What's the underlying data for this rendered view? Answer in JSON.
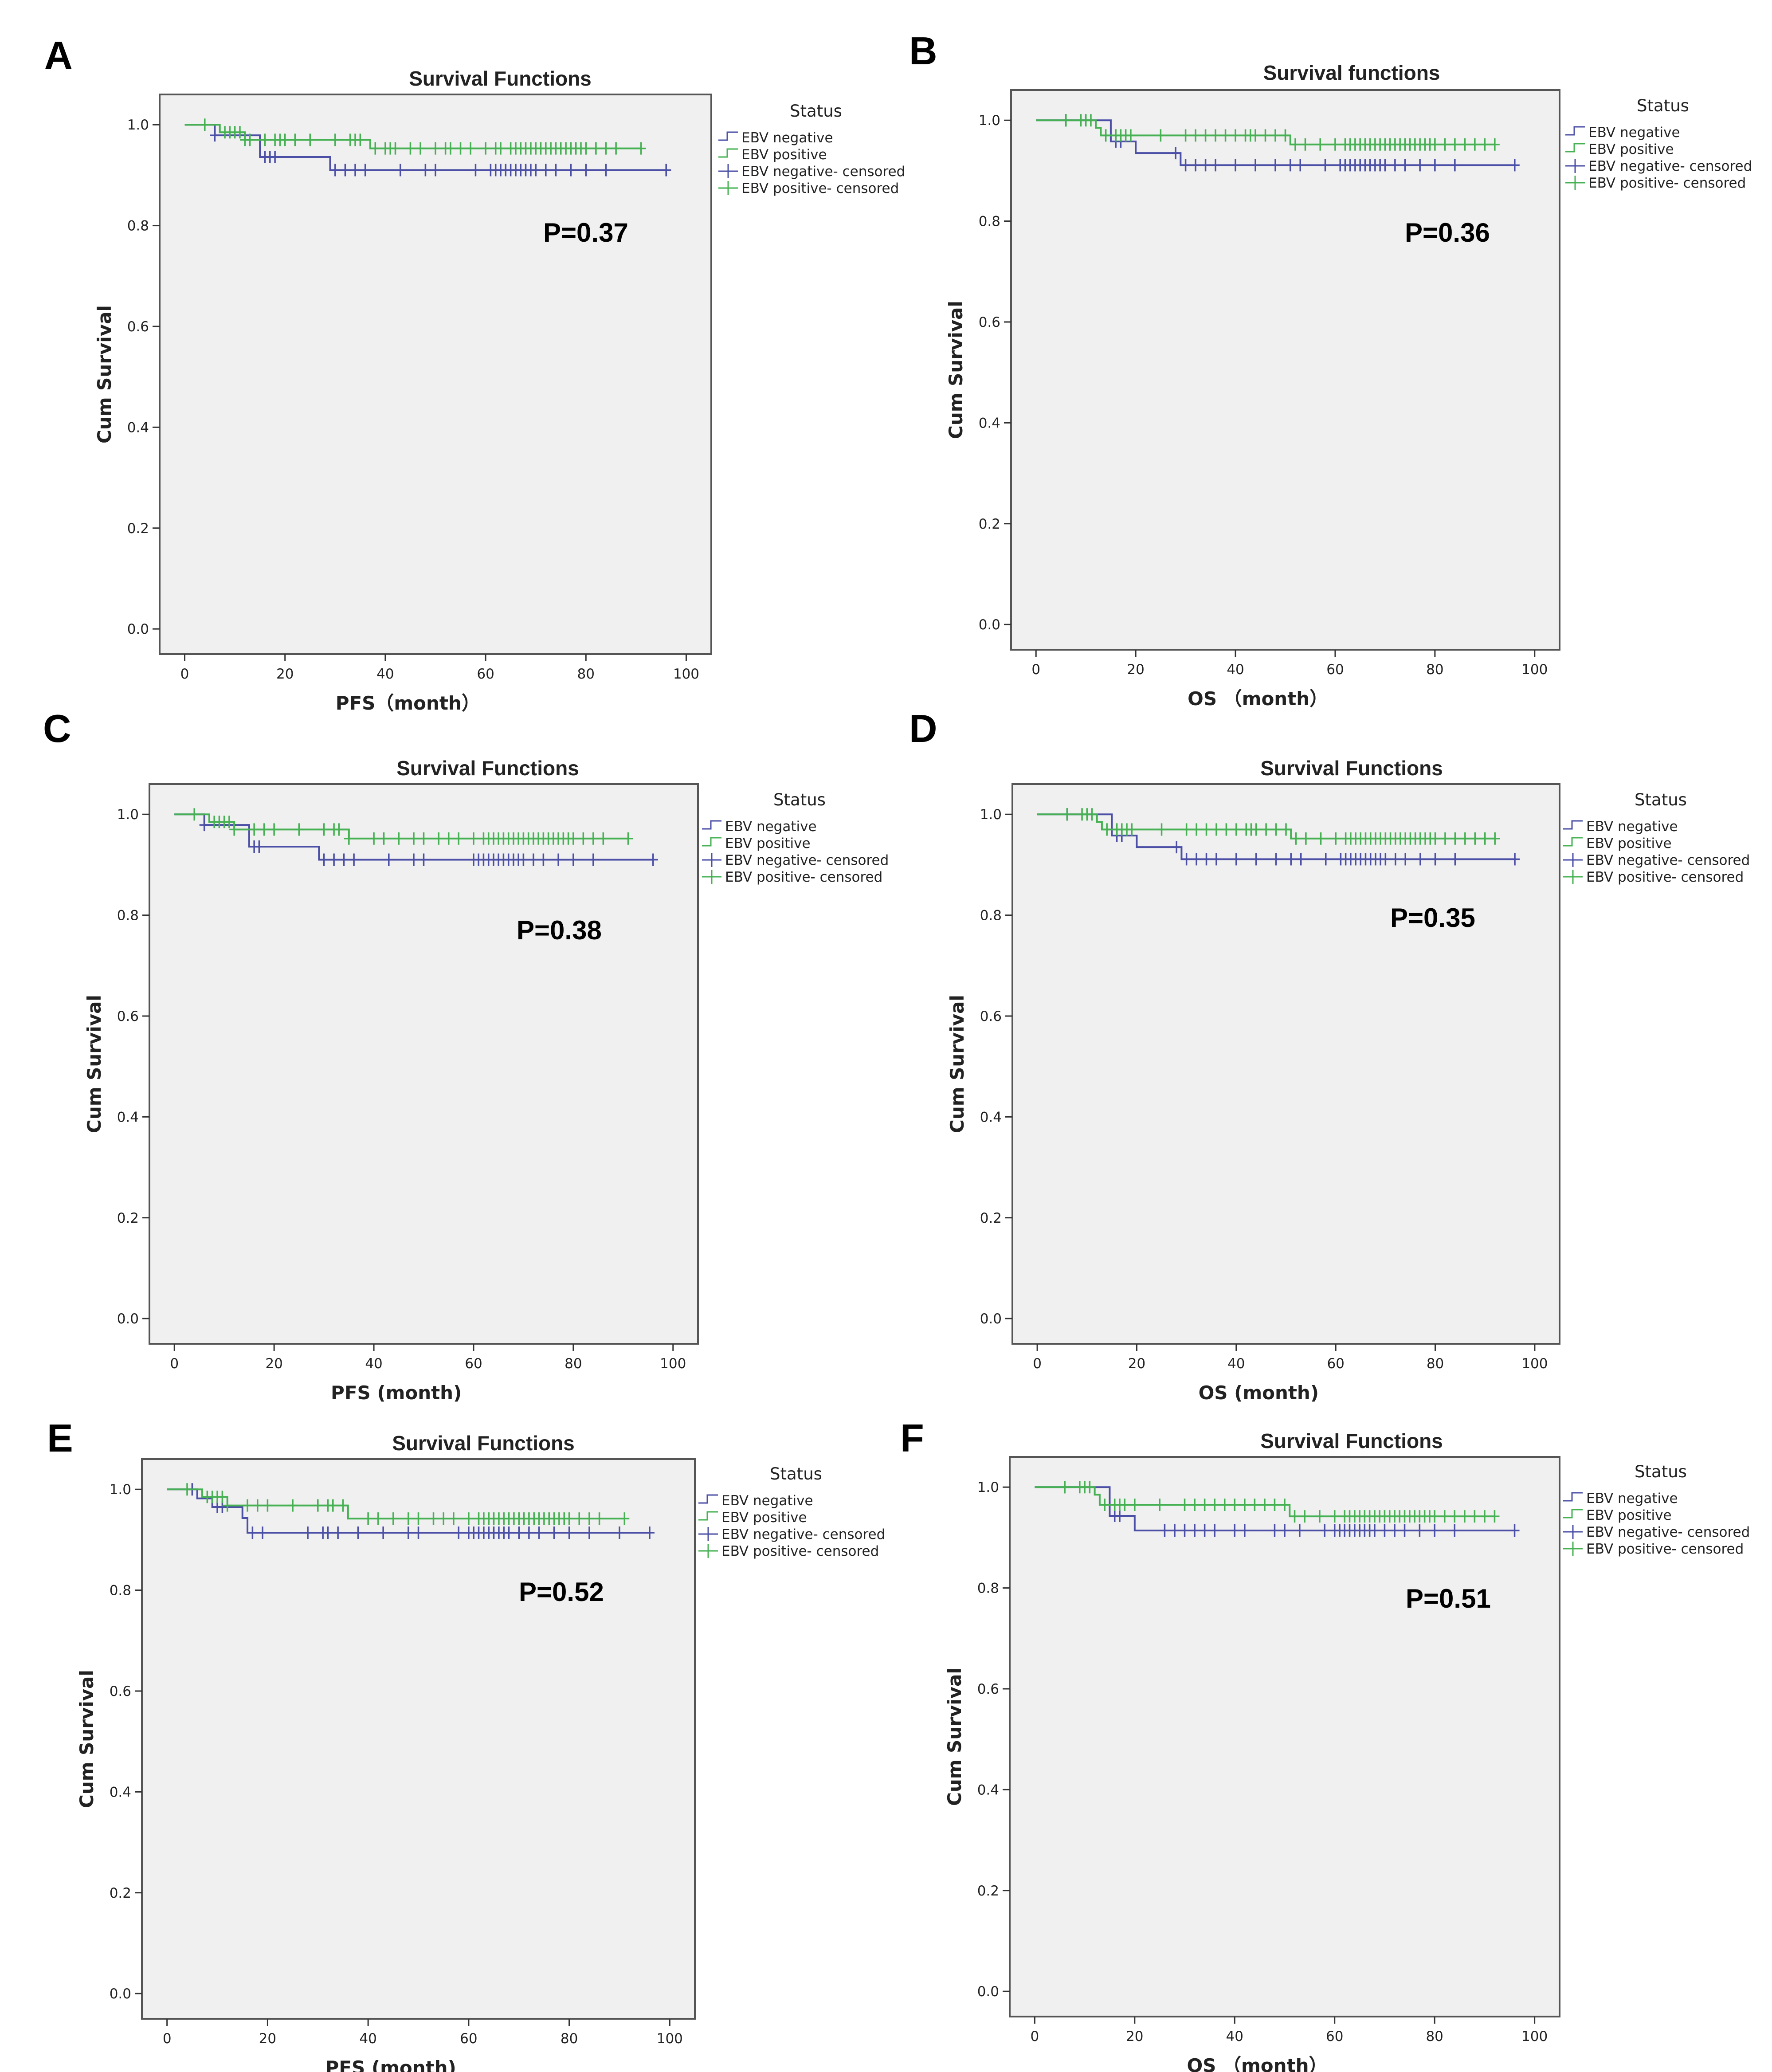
{
  "colors": {
    "negative": "#4b4fa6",
    "positive": "#45b152",
    "plot_bg": "#f0f0f0",
    "frame": "#555555"
  },
  "chart_data": [
    {
      "panel": "A",
      "type": "line",
      "title": "Survival Functions",
      "xlabel": "PFS（month）",
      "ylabel": "Cum Survival",
      "xlim": [
        -5,
        105
      ],
      "ylim": [
        -0.05,
        1.06
      ],
      "xticks": [
        0,
        20,
        40,
        60,
        80,
        100
      ],
      "yticks": [
        0.0,
        0.2,
        0.4,
        0.6,
        0.8,
        1.0
      ],
      "tick_decimals": 1,
      "grid": false,
      "legend_position": "right",
      "legend_title": "Status",
      "legend": [
        "EBV negative",
        "EBV positive",
        "EBV negative- censored",
        "EBV positive- censored"
      ],
      "annotation": "P=0.37",
      "series": [
        {
          "name": "EBV negative",
          "color": "negative",
          "steps": [
            [
              0,
              1.0
            ],
            [
              6,
              0.979
            ],
            [
              15,
              0.936
            ],
            [
              29,
              0.91
            ],
            [
              96,
              0.91
            ]
          ],
          "censored": [
            6,
            16,
            17,
            18,
            30,
            32,
            34,
            36,
            43,
            48,
            50,
            58,
            61,
            62,
            63,
            64,
            65,
            66,
            67,
            68,
            69,
            70,
            72,
            74,
            77,
            80,
            84,
            96
          ]
        },
        {
          "name": "EBV positive",
          "color": "positive",
          "steps": [
            [
              0,
              1.0
            ],
            [
              7,
              0.985
            ],
            [
              12,
              0.97
            ],
            [
              37,
              0.953
            ],
            [
              91,
              0.953
            ]
          ],
          "censored": [
            4,
            8,
            9,
            10,
            11,
            12,
            13,
            16,
            18,
            19,
            20,
            22,
            25,
            30,
            33,
            34,
            35,
            38,
            40,
            41,
            42,
            45,
            47,
            50,
            52,
            53,
            55,
            57,
            60,
            62,
            63,
            65,
            66,
            67,
            68,
            69,
            70,
            71,
            72,
            73,
            74,
            75,
            76,
            77,
            78,
            79,
            80,
            82,
            84,
            86,
            91
          ]
        }
      ]
    },
    {
      "panel": "B",
      "type": "line",
      "title": "Survival functions",
      "xlabel": "OS （month）",
      "ylabel": "Cum Survival",
      "xlim": [
        -5,
        105
      ],
      "ylim": [
        -0.05,
        1.06
      ],
      "xticks": [
        0,
        20,
        40,
        60,
        80,
        100
      ],
      "yticks": [
        0.0,
        0.2,
        0.4,
        0.6,
        0.8,
        1.0
      ],
      "tick_decimals": 1,
      "grid": false,
      "legend_position": "right",
      "legend_title": "Status",
      "legend": [
        "EBV negative",
        "EBV positive",
        "EBV negative- censored",
        "EBV positive- censored"
      ],
      "annotation": "P=0.36",
      "series": [
        {
          "name": "EBV negative",
          "color": "negative",
          "steps": [
            [
              0,
              1.0
            ],
            [
              15,
              0.958
            ],
            [
              20,
              0.935
            ],
            [
              29,
              0.911
            ],
            [
              96,
              0.911
            ]
          ],
          "censored": [
            6,
            16,
            17,
            28,
            30,
            32,
            34,
            36,
            40,
            44,
            48,
            51,
            53,
            58,
            61,
            62,
            63,
            64,
            65,
            66,
            67,
            68,
            69,
            70,
            72,
            74,
            77,
            80,
            84,
            96
          ]
        },
        {
          "name": "EBV positive",
          "color": "positive",
          "steps": [
            [
              0,
              1.0
            ],
            [
              12,
              0.985
            ],
            [
              13,
              0.97
            ],
            [
              51,
              0.952
            ],
            [
              92,
              0.952
            ]
          ],
          "censored": [
            6,
            9,
            10,
            11,
            14,
            16,
            17,
            18,
            19,
            25,
            30,
            32,
            34,
            36,
            38,
            40,
            42,
            43,
            44,
            46,
            48,
            50,
            52,
            54,
            57,
            60,
            62,
            63,
            64,
            65,
            66,
            67,
            68,
            69,
            70,
            71,
            72,
            73,
            74,
            75,
            76,
            77,
            78,
            79,
            80,
            82,
            84,
            86,
            88,
            90,
            92
          ]
        }
      ]
    },
    {
      "panel": "C",
      "type": "line",
      "title": "Survival Functions",
      "xlabel": "PFS (month)",
      "ylabel": "Cum Survival",
      "xlim": [
        -5,
        105
      ],
      "ylim": [
        -0.05,
        1.06
      ],
      "xticks": [
        0,
        20,
        40,
        60,
        80,
        100
      ],
      "yticks": [
        0.0,
        0.2,
        0.4,
        0.6,
        0.8,
        1.0
      ],
      "tick_decimals": 1,
      "grid": false,
      "legend_position": "right",
      "legend_title": "Status",
      "legend": [
        "EBV negative",
        "EBV positive",
        "EBV negative- censored",
        "EBV positive- censored"
      ],
      "annotation": "P=0.38",
      "series": [
        {
          "name": "EBV negative",
          "color": "negative",
          "steps": [
            [
              0,
              1.0
            ],
            [
              6,
              0.979
            ],
            [
              15,
              0.936
            ],
            [
              29,
              0.91
            ],
            [
              96,
              0.91
            ]
          ],
          "censored": [
            6,
            16,
            17,
            30,
            32,
            34,
            36,
            43,
            48,
            50,
            60,
            61,
            62,
            63,
            64,
            65,
            66,
            67,
            68,
            69,
            70,
            72,
            74,
            77,
            80,
            84,
            96
          ]
        },
        {
          "name": "EBV positive",
          "color": "positive",
          "steps": [
            [
              0,
              1.0
            ],
            [
              7,
              0.985
            ],
            [
              12,
              0.97
            ],
            [
              35,
              0.952
            ],
            [
              91,
              0.952
            ]
          ],
          "censored": [
            4,
            8,
            9,
            10,
            11,
            12,
            16,
            18,
            20,
            25,
            30,
            32,
            33,
            35,
            40,
            42,
            45,
            48,
            50,
            53,
            55,
            57,
            60,
            62,
            63,
            64,
            65,
            66,
            67,
            68,
            69,
            70,
            71,
            72,
            73,
            74,
            75,
            76,
            77,
            78,
            79,
            80,
            82,
            84,
            86,
            91
          ]
        }
      ]
    },
    {
      "panel": "D",
      "type": "line",
      "title": "Survival Functions",
      "xlabel": "OS (month)",
      "ylabel": "Cum Survival",
      "xlim": [
        -5,
        105
      ],
      "ylim": [
        -0.05,
        1.06
      ],
      "xticks": [
        0,
        20,
        40,
        60,
        80,
        100
      ],
      "yticks": [
        0.0,
        0.2,
        0.4,
        0.6,
        0.8,
        1.0
      ],
      "tick_decimals": 1,
      "grid": false,
      "legend_position": "right",
      "legend_title": "Status",
      "legend": [
        "EBV negative",
        "EBV positive",
        "EBV negative- censored",
        "EBV positive- censored"
      ],
      "annotation": "P=0.35",
      "series": [
        {
          "name": "EBV negative",
          "color": "negative",
          "steps": [
            [
              0,
              1.0
            ],
            [
              15,
              0.958
            ],
            [
              20,
              0.935
            ],
            [
              29,
              0.911
            ],
            [
              96,
              0.911
            ]
          ],
          "censored": [
            6,
            16,
            17,
            28,
            30,
            32,
            34,
            36,
            40,
            44,
            48,
            51,
            53,
            58,
            61,
            62,
            63,
            64,
            65,
            66,
            67,
            68,
            69,
            70,
            72,
            74,
            77,
            80,
            84,
            96
          ]
        },
        {
          "name": "EBV positive",
          "color": "positive",
          "steps": [
            [
              0,
              1.0
            ],
            [
              12,
              0.985
            ],
            [
              13,
              0.97
            ],
            [
              51,
              0.952
            ],
            [
              92,
              0.952
            ]
          ],
          "censored": [
            6,
            9,
            10,
            11,
            14,
            16,
            17,
            18,
            19,
            25,
            30,
            32,
            34,
            36,
            38,
            40,
            42,
            43,
            44,
            46,
            48,
            50,
            52,
            54,
            57,
            60,
            62,
            63,
            64,
            65,
            66,
            67,
            68,
            69,
            70,
            71,
            72,
            73,
            74,
            75,
            76,
            77,
            78,
            79,
            80,
            82,
            84,
            86,
            88,
            90,
            92
          ]
        }
      ]
    },
    {
      "panel": "E",
      "type": "line",
      "title": "Survival Functions",
      "xlabel": "PFS (month)",
      "ylabel": "Cum Survival",
      "xlim": [
        -5,
        105
      ],
      "ylim": [
        -0.05,
        1.06
      ],
      "xticks": [
        0,
        20,
        40,
        60,
        80,
        100
      ],
      "yticks": [
        0.0,
        0.2,
        0.4,
        0.6,
        0.8,
        1.0
      ],
      "tick_decimals": 1,
      "grid": false,
      "legend_position": "right",
      "legend_title": "Status",
      "legend": [
        "EBV negative",
        "EBV positive",
        "EBV negative- censored",
        "EBV positive- censored"
      ],
      "annotation": "P=0.52",
      "series": [
        {
          "name": "EBV negative",
          "color": "negative",
          "steps": [
            [
              0,
              1.0
            ],
            [
              6,
              0.982
            ],
            [
              9,
              0.965
            ],
            [
              15,
              0.943
            ],
            [
              16,
              0.914
            ],
            [
              96,
              0.914
            ]
          ],
          "censored": [
            5,
            10,
            11,
            17,
            19,
            28,
            31,
            32,
            34,
            38,
            43,
            48,
            50,
            58,
            60,
            61,
            62,
            63,
            64,
            65,
            66,
            67,
            68,
            70,
            72,
            74,
            77,
            80,
            84,
            90,
            96
          ]
        },
        {
          "name": "EBV positive",
          "color": "positive",
          "steps": [
            [
              0,
              1.0
            ],
            [
              7,
              0.985
            ],
            [
              12,
              0.968
            ],
            [
              36,
              0.942
            ],
            [
              91,
              0.942
            ]
          ],
          "censored": [
            4,
            8,
            9,
            10,
            11,
            12,
            16,
            18,
            20,
            25,
            30,
            32,
            33,
            35,
            40,
            42,
            45,
            48,
            50,
            53,
            55,
            57,
            60,
            62,
            63,
            64,
            65,
            66,
            67,
            68,
            69,
            70,
            71,
            72,
            73,
            74,
            75,
            76,
            77,
            78,
            79,
            80,
            82,
            84,
            86,
            91
          ]
        }
      ]
    },
    {
      "panel": "F",
      "type": "line",
      "title": "Survival Functions",
      "xlabel": "OS （month）",
      "ylabel": "Cum Survival",
      "xlim": [
        -5,
        105
      ],
      "ylim": [
        -0.05,
        1.06
      ],
      "xticks": [
        0,
        20,
        40,
        60,
        80,
        100
      ],
      "yticks": [
        0.0,
        0.2,
        0.4,
        0.6,
        0.8,
        1.0
      ],
      "tick_decimals": 1,
      "grid": false,
      "legend_position": "right",
      "legend_title": "Status",
      "legend": [
        "EBV negative",
        "EBV positive",
        "EBV negative- censored",
        "EBV positive- censored"
      ],
      "annotation": "P=0.51",
      "series": [
        {
          "name": "EBV negative",
          "color": "negative",
          "steps": [
            [
              0,
              1.0
            ],
            [
              15,
              0.943
            ],
            [
              20,
              0.914
            ],
            [
              96,
              0.914
            ]
          ],
          "censored": [
            6,
            16,
            17,
            26,
            28,
            30,
            32,
            34,
            36,
            40,
            42,
            48,
            50,
            53,
            58,
            60,
            61,
            62,
            63,
            64,
            65,
            66,
            67,
            68,
            70,
            72,
            74,
            77,
            80,
            84,
            96
          ]
        },
        {
          "name": "EBV positive",
          "color": "positive",
          "steps": [
            [
              0,
              1.0
            ],
            [
              12,
              0.985
            ],
            [
              13,
              0.965
            ],
            [
              51,
              0.942
            ],
            [
              92,
              0.942
            ]
          ],
          "censored": [
            6,
            9,
            10,
            11,
            14,
            16,
            17,
            18,
            20,
            25,
            30,
            32,
            34,
            36,
            38,
            40,
            42,
            44,
            46,
            48,
            50,
            52,
            54,
            57,
            60,
            62,
            63,
            64,
            65,
            66,
            67,
            68,
            69,
            70,
            71,
            72,
            73,
            74,
            75,
            76,
            77,
            78,
            79,
            80,
            82,
            84,
            86,
            88,
            90,
            92
          ]
        }
      ]
    }
  ]
}
